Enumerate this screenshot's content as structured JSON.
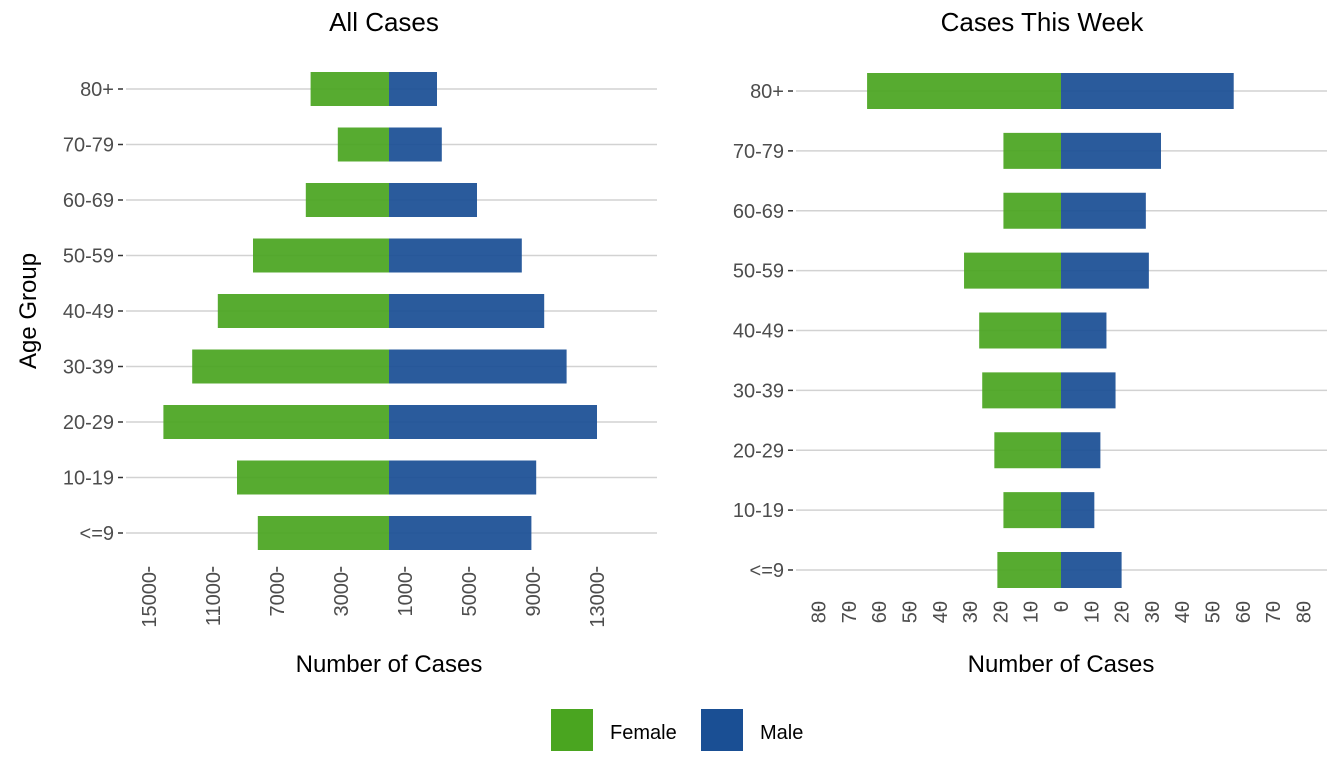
{
  "legend": {
    "female_label": "Female",
    "male_label": "Male"
  },
  "colors": {
    "female": "#4aa520",
    "male": "#1a4f94"
  },
  "chart_data": [
    {
      "type": "bar",
      "orientation": "horizontal",
      "title": "All Cases",
      "xlabel": "Number of Cases",
      "ylabel": "Age Group",
      "categories": [
        "<=9",
        "10-19",
        "20-29",
        "30-39",
        "40-49",
        "50-59",
        "60-69",
        "70-79",
        "80+"
      ],
      "series": [
        {
          "name": "Female",
          "values": [
            8200,
            9500,
            14100,
            12300,
            10700,
            8500,
            5200,
            3200,
            4900
          ]
        },
        {
          "name": "Male",
          "values": [
            8900,
            9200,
            13000,
            11100,
            9700,
            8300,
            5500,
            3300,
            3000
          ]
        }
      ],
      "xlim": [
        -15000,
        15000
      ],
      "xticks": [
        -15000,
        -11000,
        -7000,
        -3000,
        1000,
        5000,
        9000,
        13000
      ],
      "xtick_labels": [
        "15000",
        "11000",
        "7000",
        "3000",
        "1000",
        "5000",
        "9000",
        "13000"
      ],
      "grid": true
    },
    {
      "type": "bar",
      "orientation": "horizontal",
      "title": "Cases This Week",
      "xlabel": "Number of Cases",
      "ylabel": "",
      "categories": [
        "<=9",
        "10-19",
        "20-29",
        "30-39",
        "40-49",
        "50-59",
        "60-69",
        "70-79",
        "80+"
      ],
      "series": [
        {
          "name": "Female",
          "values": [
            21,
            19,
            22,
            26,
            27,
            32,
            19,
            19,
            64
          ]
        },
        {
          "name": "Male",
          "values": [
            20,
            11,
            13,
            18,
            15,
            29,
            28,
            33,
            57
          ]
        }
      ],
      "xlim": [
        -80,
        80
      ],
      "xticks": [
        -80,
        -70,
        -60,
        -50,
        -40,
        -30,
        -20,
        -10,
        0,
        10,
        20,
        30,
        40,
        50,
        60,
        70,
        80
      ],
      "xtick_labels": [
        "80",
        "70",
        "60",
        "50",
        "40",
        "30",
        "20",
        "10",
        "0",
        "10",
        "20",
        "30",
        "40",
        "50",
        "60",
        "70",
        "80"
      ],
      "grid": true
    }
  ]
}
